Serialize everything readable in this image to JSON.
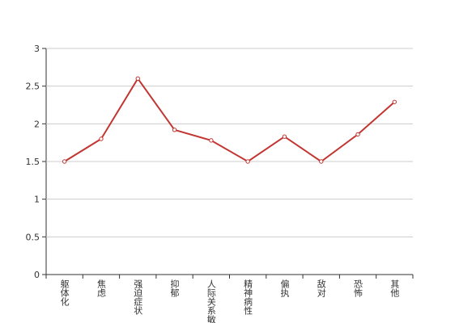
{
  "chart_data": {
    "type": "line",
    "categories": [
      "躯体化",
      "焦虑",
      "强迫症状",
      "抑郁",
      "人际关系敏感",
      "精神病性",
      "偏执",
      "敌对",
      "恐怖",
      "其他"
    ],
    "values": [
      1.5,
      1.8,
      2.6,
      1.92,
      1.78,
      1.5,
      1.83,
      1.5,
      1.86,
      2.29
    ],
    "color": "#c23531",
    "ylim": [
      0,
      3
    ],
    "yticks": [
      0,
      0.5,
      1,
      1.5,
      2,
      2.5,
      3
    ],
    "grid": true
  }
}
